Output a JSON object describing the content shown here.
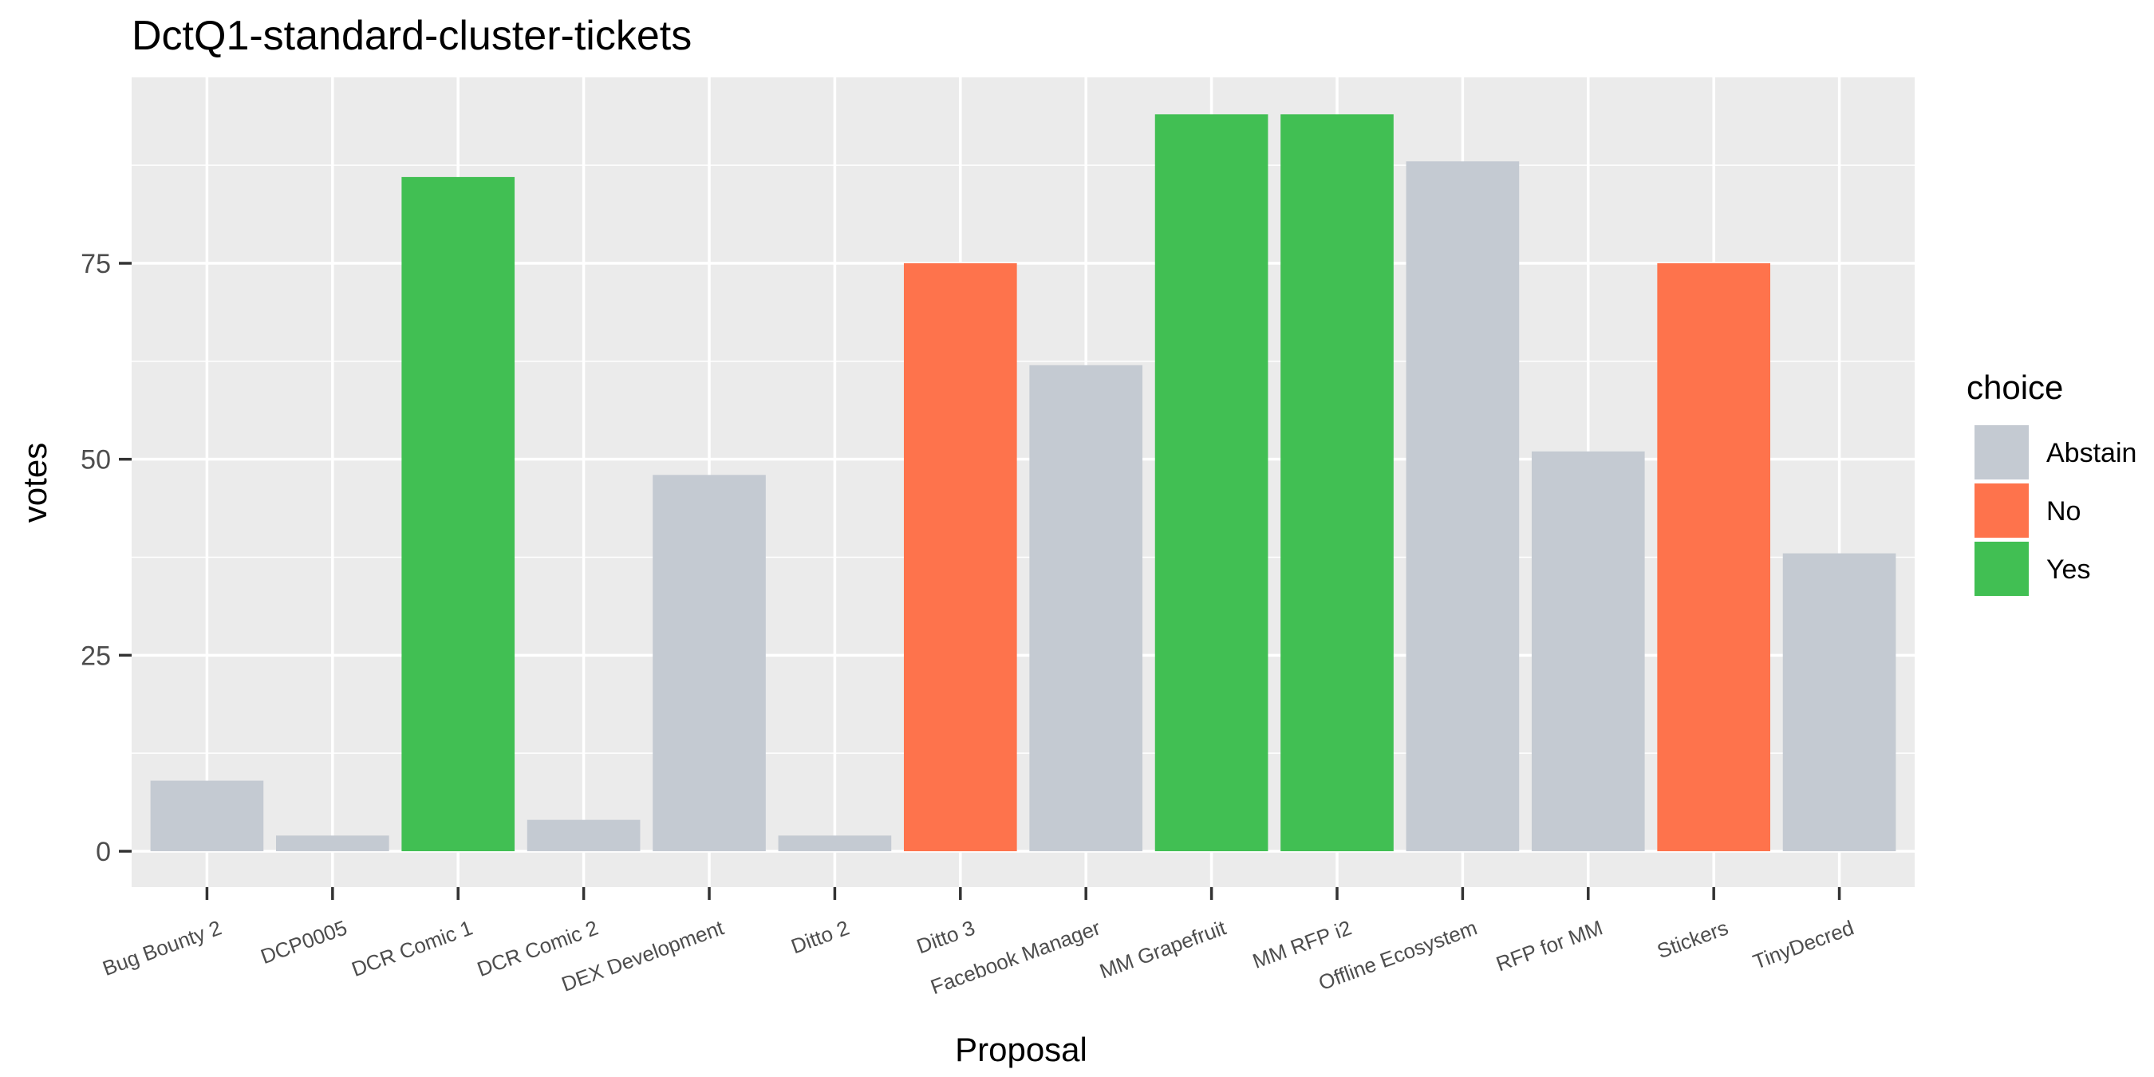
{
  "chart_data": {
    "type": "bar",
    "title": "DctQ1-standard-cluster-tickets",
    "xlabel": "Proposal",
    "ylabel": "votes",
    "categories": [
      "Bug Bounty 2",
      "DCP0005",
      "DCR Comic 1",
      "DCR Comic 2",
      "DEX Development",
      "Ditto 2",
      "Ditto 3",
      "Facebook Manager",
      "MM Grapefruit",
      "MM RFP i2",
      "Offline Ecosystem",
      "RFP for MM",
      "Stickers",
      "TinyDecred"
    ],
    "values": [
      9,
      2,
      86,
      4,
      48,
      2,
      75,
      62,
      94,
      94,
      88,
      51,
      75,
      38
    ],
    "choices": [
      "Abstain",
      "Abstain",
      "Yes",
      "Abstain",
      "Abstain",
      "Abstain",
      "No",
      "Abstain",
      "Yes",
      "Yes",
      "Abstain",
      "Abstain",
      "No",
      "Abstain"
    ],
    "ylim": [
      0,
      98.5
    ],
    "yticks": [
      0,
      25,
      50,
      75
    ],
    "grid": true,
    "legend": {
      "title": "choice",
      "position": "right",
      "entries": [
        {
          "label": "Abstain",
          "color": "#c4cad2"
        },
        {
          "label": "No",
          "color": "#fe734c"
        },
        {
          "label": "Yes",
          "color": "#41bf53"
        }
      ]
    },
    "panel_background": "#ebebeb",
    "x_tick_angle": -20
  }
}
